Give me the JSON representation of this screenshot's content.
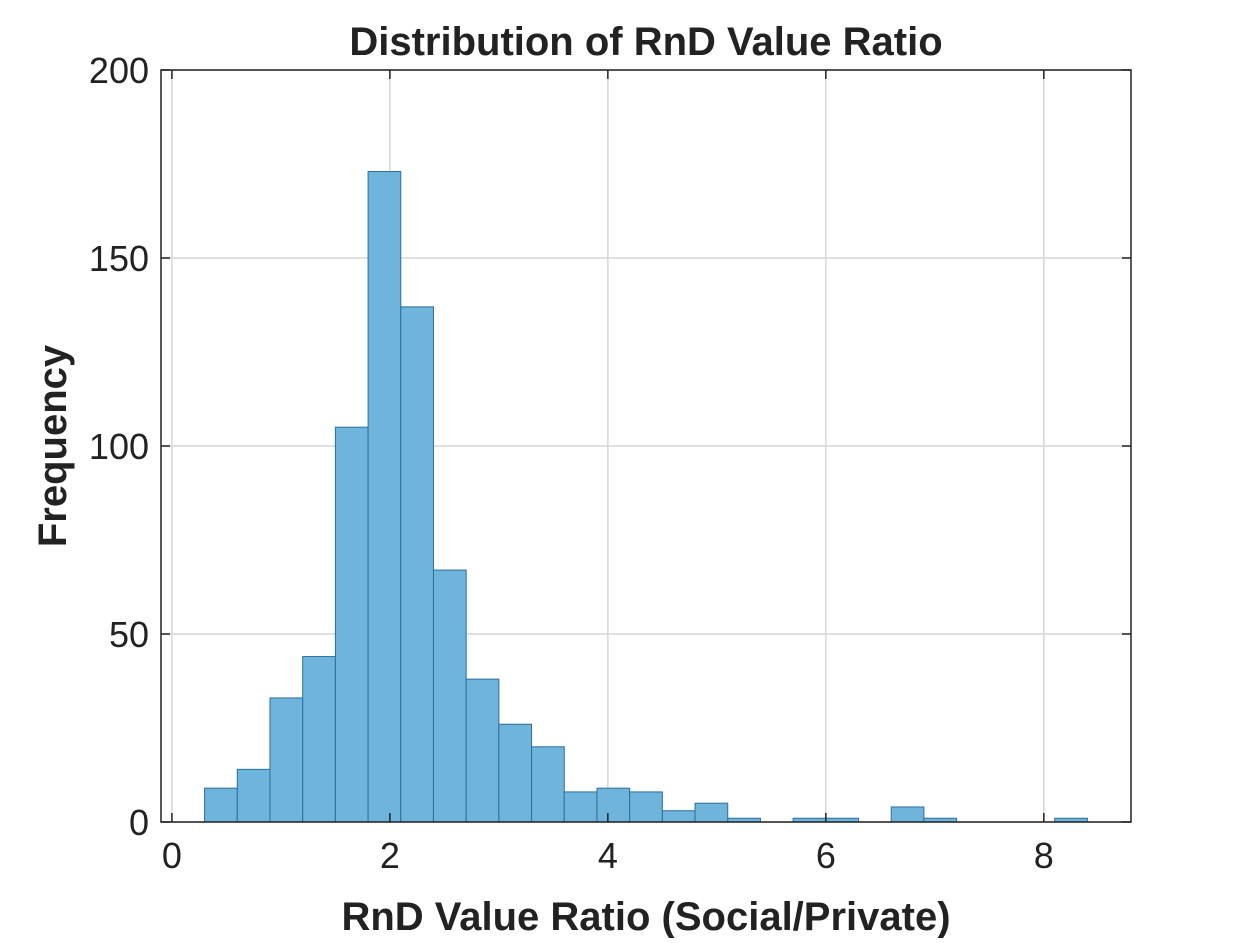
{
  "chart_data": {
    "type": "bar",
    "title": "Distribution of RnD Value Ratio",
    "xlabel": "RnD Value Ratio (Social/Private)",
    "ylabel": "Frequency",
    "xlim": [
      -0.1,
      8.8
    ],
    "ylim": [
      0,
      200
    ],
    "xticks": [
      "0",
      "2",
      "4",
      "6",
      "8"
    ],
    "xtick_values": [
      0,
      2,
      4,
      6,
      8
    ],
    "yticks": [
      "0",
      "50",
      "100",
      "150",
      "200"
    ],
    "ytick_values": [
      0,
      50,
      100,
      150,
      200
    ],
    "grid": true,
    "bar_color": "#6fb4db",
    "edge_color": "#2b6f9e",
    "bins": [
      {
        "x0": 0.3,
        "x1": 0.6,
        "value": 9
      },
      {
        "x0": 0.6,
        "x1": 0.9,
        "value": 14
      },
      {
        "x0": 0.9,
        "x1": 1.2,
        "value": 33
      },
      {
        "x0": 1.2,
        "x1": 1.5,
        "value": 44
      },
      {
        "x0": 1.5,
        "x1": 1.8,
        "value": 105
      },
      {
        "x0": 1.8,
        "x1": 2.1,
        "value": 173
      },
      {
        "x0": 2.1,
        "x1": 2.4,
        "value": 137
      },
      {
        "x0": 2.4,
        "x1": 2.7,
        "value": 67
      },
      {
        "x0": 2.7,
        "x1": 3.0,
        "value": 38
      },
      {
        "x0": 3.0,
        "x1": 3.3,
        "value": 26
      },
      {
        "x0": 3.3,
        "x1": 3.6,
        "value": 20
      },
      {
        "x0": 3.6,
        "x1": 3.9,
        "value": 8
      },
      {
        "x0": 3.9,
        "x1": 4.2,
        "value": 9
      },
      {
        "x0": 4.2,
        "x1": 4.5,
        "value": 8
      },
      {
        "x0": 4.5,
        "x1": 4.8,
        "value": 3
      },
      {
        "x0": 4.8,
        "x1": 5.1,
        "value": 5
      },
      {
        "x0": 5.1,
        "x1": 5.4,
        "value": 1
      },
      {
        "x0": 5.4,
        "x1": 5.7,
        "value": 0
      },
      {
        "x0": 5.7,
        "x1": 6.0,
        "value": 1
      },
      {
        "x0": 6.0,
        "x1": 6.3,
        "value": 1
      },
      {
        "x0": 6.3,
        "x1": 6.6,
        "value": 0
      },
      {
        "x0": 6.6,
        "x1": 6.9,
        "value": 4
      },
      {
        "x0": 6.9,
        "x1": 7.2,
        "value": 1
      },
      {
        "x0": 7.2,
        "x1": 7.5,
        "value": 0
      },
      {
        "x0": 7.5,
        "x1": 7.8,
        "value": 0
      },
      {
        "x0": 7.8,
        "x1": 8.1,
        "value": 0
      },
      {
        "x0": 8.1,
        "x1": 8.4,
        "value": 1
      }
    ]
  }
}
